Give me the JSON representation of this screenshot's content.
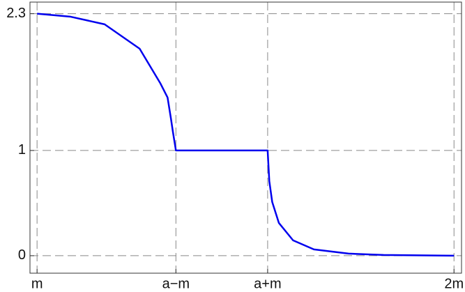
{
  "chart_data": {
    "type": "line",
    "x": [
      1.0,
      1.079,
      1.162,
      1.246,
      1.296,
      1.313,
      1.321,
      1.326,
      1.333,
      1.553,
      1.557,
      1.564,
      1.58,
      1.614,
      1.664,
      1.747,
      1.831,
      2.0
    ],
    "series": [
      {
        "color": "#0000ee",
        "values": [
          2.3,
          2.272,
          2.199,
          1.967,
          1.636,
          1.503,
          1.305,
          1.172,
          1.0,
          1.0,
          0.709,
          0.51,
          0.311,
          0.146,
          0.06,
          0.02,
          0.007,
          0.0
        ]
      }
    ],
    "xlim": [
      0.983,
      2.018
    ],
    "ylim": [
      -0.166,
      2.41
    ],
    "xticks": [
      {
        "value": 1.0,
        "label": "m"
      },
      {
        "value": 1.333,
        "label": "a−m"
      },
      {
        "value": 1.553,
        "label": "a+m"
      },
      {
        "value": 2.0,
        "label": "2m"
      }
    ],
    "yticks": [
      0,
      1,
      2.3
    ],
    "grid": true
  }
}
